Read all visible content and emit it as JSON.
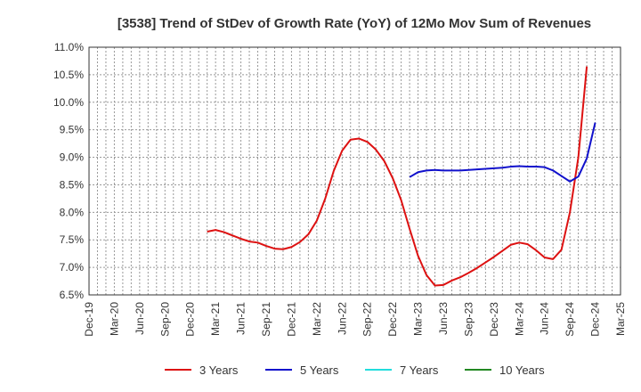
{
  "chart_data": {
    "type": "line",
    "title": "[3538]  Trend of StDev of Growth Rate (YoY) of 12Mo Mov Sum of Revenues",
    "xlabel": "",
    "ylabel": "",
    "grid": true,
    "legend_position": "bottom",
    "ylim": [
      6.5,
      11.0
    ],
    "y_ticks": [
      "6.5%",
      "7.0%",
      "7.5%",
      "8.0%",
      "8.5%",
      "9.0%",
      "9.5%",
      "10.0%",
      "10.5%",
      "11.0%"
    ],
    "x_ticks": [
      "Dec-19",
      "Mar-20",
      "Jun-20",
      "Sep-20",
      "Dec-20",
      "Mar-21",
      "Jun-21",
      "Sep-21",
      "Dec-21",
      "Mar-22",
      "Jun-22",
      "Sep-22",
      "Dec-22",
      "Mar-23",
      "Jun-23",
      "Sep-23",
      "Dec-23",
      "Mar-24",
      "Jun-24",
      "Sep-24",
      "Dec-24",
      "Mar-25"
    ],
    "series": [
      {
        "name": "3 Years",
        "color": "#dd1111",
        "start_month_index": 14,
        "values": [
          7.65,
          7.68,
          7.64,
          7.58,
          7.52,
          7.47,
          7.45,
          7.39,
          7.34,
          7.33,
          7.37,
          7.46,
          7.6,
          7.85,
          8.25,
          8.75,
          9.12,
          9.32,
          9.34,
          9.28,
          9.14,
          8.93,
          8.62,
          8.22,
          7.7,
          7.21,
          6.86,
          6.67,
          6.68,
          6.76,
          6.82,
          6.9,
          6.99,
          7.09,
          7.19,
          7.3,
          7.41,
          7.45,
          7.42,
          7.31,
          7.18,
          7.15,
          7.32,
          8.0,
          9.0,
          10.65
        ]
      },
      {
        "name": "5 Years",
        "color": "#1111cc",
        "start_month_index": 38,
        "values": [
          8.64,
          8.73,
          8.76,
          8.77,
          8.76,
          8.76,
          8.76,
          8.77,
          8.78,
          8.79,
          8.8,
          8.81,
          8.83,
          8.84,
          8.83,
          8.83,
          8.82,
          8.76,
          8.66,
          8.56,
          8.65,
          8.98,
          9.63
        ]
      },
      {
        "name": "7 Years",
        "color": "#22dddd",
        "start_month_index": 0,
        "values": []
      },
      {
        "name": "10 Years",
        "color": "#228822",
        "start_month_index": 0,
        "values": []
      }
    ]
  }
}
